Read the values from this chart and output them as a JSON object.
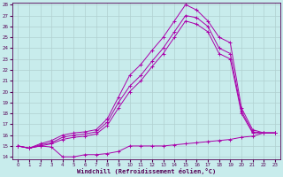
{
  "xlabel": "Windchill (Refroidissement éolien,°C)",
  "bg_color": "#c8ecec",
  "grid_color": "#b0d0d0",
  "line_color": "#aa00aa",
  "xlim": [
    -0.5,
    23.5
  ],
  "ylim": [
    13.8,
    28.2
  ],
  "yticks": [
    14,
    15,
    16,
    17,
    18,
    19,
    20,
    21,
    22,
    23,
    24,
    25,
    26,
    27,
    28
  ],
  "xticks": [
    0,
    1,
    2,
    3,
    4,
    5,
    6,
    7,
    8,
    9,
    10,
    11,
    12,
    13,
    14,
    15,
    16,
    17,
    18,
    19,
    20,
    21,
    22,
    23
  ],
  "series": [
    {
      "x": [
        0,
        1,
        2,
        3,
        4,
        5,
        6,
        7,
        8,
        9,
        10,
        11,
        12,
        13,
        14,
        15,
        16,
        17,
        18,
        19,
        20,
        21,
        22,
        23
      ],
      "y": [
        15.0,
        14.8,
        15.0,
        14.9,
        14.0,
        14.0,
        14.2,
        14.2,
        14.3,
        14.5,
        15.0,
        15.0,
        15.0,
        15.0,
        15.1,
        15.2,
        15.3,
        15.4,
        15.5,
        15.6,
        15.8,
        15.9,
        16.2,
        16.2
      ]
    },
    {
      "x": [
        0,
        1,
        2,
        3,
        4,
        5,
        6,
        7,
        8,
        9,
        10,
        11,
        12,
        13,
        14,
        15,
        16,
        17,
        18,
        19,
        20,
        21,
        22,
        23
      ],
      "y": [
        15.0,
        14.8,
        15.2,
        15.5,
        16.0,
        16.2,
        16.3,
        16.5,
        17.5,
        19.5,
        21.5,
        22.5,
        23.8,
        25.0,
        26.5,
        28.0,
        27.5,
        26.5,
        25.0,
        24.5,
        18.5,
        16.5,
        16.2,
        16.2
      ]
    },
    {
      "x": [
        0,
        1,
        2,
        3,
        4,
        5,
        6,
        7,
        8,
        9,
        10,
        11,
        12,
        13,
        14,
        15,
        16,
        17,
        18,
        19,
        20,
        21,
        22,
        23
      ],
      "y": [
        15.0,
        14.8,
        15.1,
        15.3,
        15.8,
        16.0,
        16.1,
        16.3,
        17.2,
        19.0,
        20.5,
        21.5,
        22.8,
        24.0,
        25.5,
        27.0,
        26.8,
        26.0,
        24.0,
        23.5,
        18.2,
        16.3,
        16.2,
        16.2
      ]
    },
    {
      "x": [
        0,
        1,
        2,
        3,
        4,
        5,
        6,
        7,
        8,
        9,
        10,
        11,
        12,
        13,
        14,
        15,
        16,
        17,
        18,
        19,
        20,
        21,
        22,
        23
      ],
      "y": [
        15.0,
        14.8,
        15.0,
        15.2,
        15.6,
        15.8,
        15.9,
        16.1,
        16.9,
        18.5,
        20.0,
        21.0,
        22.3,
        23.5,
        25.0,
        26.5,
        26.2,
        25.5,
        23.5,
        23.0,
        18.0,
        16.2,
        16.2,
        16.2
      ]
    }
  ]
}
